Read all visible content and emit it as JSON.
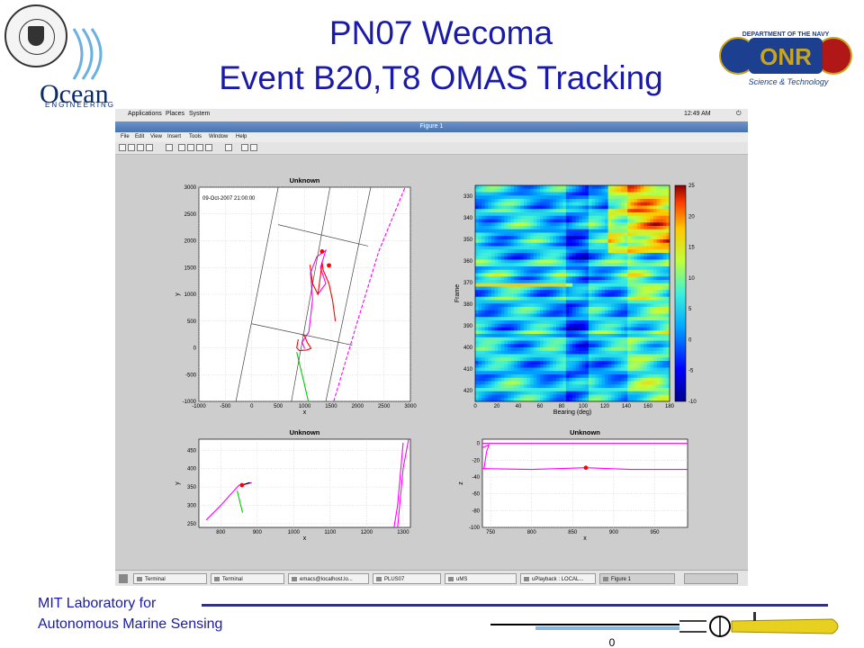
{
  "slide": {
    "title_line1": "PN07 Wecoma",
    "title_line2": "Event B20,T8 OMAS Tracking",
    "footer_line1": "MIT Laboratory for",
    "footer_line2": "Autonomous Marine Sensing",
    "logo_left_word": "Ocean",
    "logo_left_sub": "ENGINEERING",
    "logo_right_top": "DEPARTMENT OF THE NAVY",
    "logo_right_mid": "ONR",
    "logo_right_bottom": "Science & Technology",
    "vehicle_mark": "0"
  },
  "desktop": {
    "menus": [
      "Applications",
      "Places",
      "System"
    ],
    "clock": "12:49 AM",
    "window_title": "Figure 1",
    "figure_menus": [
      "File",
      "Edit",
      "View",
      "Insert",
      "Tools",
      "Window",
      "Help"
    ],
    "taskbar_items": [
      "Terminal",
      "Terminal",
      "emacs@localhost.lo...",
      "PLUS07",
      "uMS",
      "uPlayback : LOCAL...",
      "Figure 1"
    ]
  },
  "chart_data": [
    {
      "type": "line",
      "title": "Unknown",
      "xlabel": "x",
      "ylabel": "y",
      "annotation": "09-Oct-2007 21:00:00",
      "xlim": [
        -1000,
        3000
      ],
      "ylim": [
        -1000,
        3000
      ],
      "xticks": [
        -1000,
        -500,
        0,
        500,
        1000,
        1500,
        2000,
        2500,
        3000
      ],
      "yticks": [
        -1000,
        -500,
        0,
        500,
        1000,
        1500,
        2000,
        2500,
        3000
      ],
      "grid": true,
      "series": [
        {
          "color": "#ff00ff",
          "style": "dashed",
          "points": [
            [
              1550,
              -1000
            ],
            [
              2000,
              500
            ],
            [
              2400,
              1800
            ],
            [
              2900,
              3000
            ]
          ]
        },
        {
          "color": "#ff00ff",
          "points": [
            [
              1000,
              -10
            ],
            [
              950,
              100
            ],
            [
              1080,
              300
            ],
            [
              1150,
              900
            ],
            [
              1110,
              1400
            ],
            [
              1230,
              1700
            ],
            [
              1400,
              1820
            ],
            [
              1300,
              1500
            ],
            [
              1400,
              1200
            ],
            [
              1250,
              1000
            ]
          ]
        },
        {
          "color": "#ff0000",
          "points": [
            [
              880,
              160
            ],
            [
              850,
              0
            ],
            [
              900,
              -50
            ],
            [
              1040,
              -40
            ],
            [
              1120,
              -10
            ],
            [
              1050,
              100
            ],
            [
              1000,
              220
            ],
            [
              950,
              250
            ]
          ]
        },
        {
          "color": "#ff0000",
          "points": [
            [
              1100,
              1550
            ],
            [
              1150,
              1200
            ],
            [
              1250,
              1000
            ],
            [
              1300,
              1350
            ],
            [
              1330,
              1600
            ],
            [
              1350,
              1450
            ],
            [
              1460,
              1200
            ],
            [
              1530,
              880
            ],
            [
              1580,
              500
            ]
          ]
        },
        {
          "color": "#00cc00",
          "points": [
            [
              850,
              -80
            ],
            [
              1000,
              -700
            ],
            [
              1070,
              -1000
            ]
          ]
        }
      ],
      "markers": [
        [
          1330,
          1800
        ],
        [
          1460,
          1540
        ]
      ]
    },
    {
      "type": "heatmap",
      "title": "",
      "xlabel": "Bearing (deg)",
      "ylabel": "Frame",
      "xlim": [
        0,
        180
      ],
      "ylim": [
        425,
        325
      ],
      "xticks": [
        0,
        20,
        40,
        60,
        80,
        100,
        120,
        140,
        160,
        180
      ],
      "yticks": [
        330,
        340,
        350,
        360,
        370,
        380,
        390,
        400,
        410,
        420
      ],
      "colorbar": {
        "min": -10,
        "max": 25,
        "ticks": [
          -10,
          -5,
          0,
          5,
          10,
          15,
          20,
          25
        ]
      }
    },
    {
      "type": "line",
      "title": "Unknown",
      "xlabel": "x",
      "ylabel": "y",
      "xlim": [
        740,
        1320
      ],
      "ylim": [
        240,
        480
      ],
      "xticks": [
        800,
        900,
        1000,
        1100,
        1200,
        1300
      ],
      "yticks": [
        250,
        300,
        350,
        400,
        450
      ],
      "grid": true,
      "series": [
        {
          "color": "#ff00ff",
          "points": [
            [
              760,
              260
            ],
            [
              800,
              300
            ],
            [
              850,
              355
            ],
            [
              870,
              358
            ],
            [
              885,
              362
            ]
          ]
        },
        {
          "color": "#ff00ff",
          "points": [
            [
              1285,
              240
            ],
            [
              1300,
              400
            ],
            [
              1315,
              480
            ]
          ]
        },
        {
          "color": "#ff00ff",
          "points": [
            [
              1275,
              240
            ],
            [
              1285,
              300
            ],
            [
              1300,
              470
            ]
          ]
        },
        {
          "color": "#00cc00",
          "points": [
            [
              845,
              340
            ],
            [
              860,
              280
            ]
          ]
        },
        {
          "color": "#000000",
          "points": [
            [
              858,
              355
            ],
            [
              880,
              362
            ]
          ]
        }
      ],
      "markers": [
        [
          858,
          355
        ]
      ]
    },
    {
      "type": "line",
      "title": "Unknown",
      "xlabel": "x",
      "ylabel": "z",
      "xlim": [
        740,
        990
      ],
      "ylim": [
        -100,
        5
      ],
      "xticks": [
        750,
        800,
        850,
        900,
        950
      ],
      "yticks": [
        0,
        -20,
        -40,
        -60,
        -80,
        -100
      ],
      "grid": true,
      "series": [
        {
          "color": "#ff00ff",
          "points": [
            [
              740,
              0
            ],
            [
              990,
              0
            ]
          ]
        },
        {
          "color": "#ff00ff",
          "points": [
            [
              740,
              -30
            ],
            [
              800,
              -31
            ],
            [
              866,
              -29
            ],
            [
              920,
              -31
            ],
            [
              990,
              -31
            ]
          ]
        },
        {
          "color": "#ff00ff",
          "points": [
            [
              740,
              -5
            ],
            [
              748,
              -2
            ],
            [
              745,
              -10
            ],
            [
              742,
              -30
            ]
          ]
        }
      ],
      "markers": [
        [
          866,
          -29
        ]
      ]
    }
  ]
}
